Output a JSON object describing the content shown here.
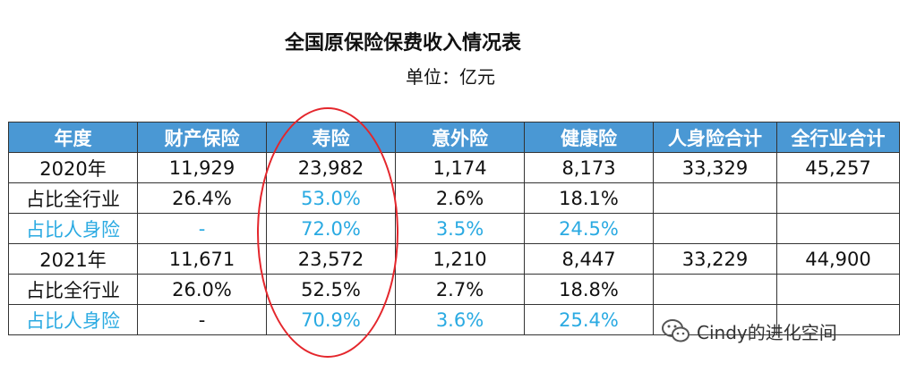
{
  "title": "全国原保险保费收入情况表",
  "unit": "单位：亿元",
  "table": {
    "headers": [
      "年度",
      "财产保险",
      "寿险",
      "意外险",
      "健康险",
      "人身险合计",
      "全行业合计"
    ],
    "rows": [
      {
        "cells": [
          "2020年",
          "11,929",
          "23,982",
          "1,174",
          "8,173",
          "33,329",
          "45,257"
        ],
        "blue": [
          false,
          false,
          false,
          false,
          false,
          false,
          false
        ]
      },
      {
        "cells": [
          "占比全行业",
          "26.4%",
          "53.0%",
          "2.6%",
          "18.1%",
          "",
          ""
        ],
        "blue": [
          false,
          false,
          true,
          false,
          false,
          false,
          false
        ]
      },
      {
        "cells": [
          "占比人身险",
          "-",
          "72.0%",
          "3.5%",
          "24.5%",
          "",
          ""
        ],
        "blue": [
          true,
          true,
          true,
          true,
          true,
          false,
          false
        ]
      },
      {
        "cells": [
          "2021年",
          "11,671",
          "23,572",
          "1,210",
          "8,447",
          "33,229",
          "44,900"
        ],
        "blue": [
          false,
          false,
          false,
          false,
          false,
          false,
          false
        ]
      },
      {
        "cells": [
          "占比全行业",
          "26.0%",
          "52.5%",
          "2.7%",
          "18.8%",
          "",
          ""
        ],
        "blue": [
          false,
          false,
          false,
          false,
          false,
          false,
          false
        ]
      },
      {
        "cells": [
          "占比人身险",
          "-",
          "70.9%",
          "3.6%",
          "25.4%",
          "",
          ""
        ],
        "blue": [
          true,
          false,
          true,
          true,
          true,
          false,
          false
        ]
      }
    ]
  },
  "watermark": {
    "text": "Cindy的进化空间",
    "icon": "wechat-icon"
  },
  "colors": {
    "header_bg": "#4a98d4",
    "highlight_text": "#2aaae2",
    "annotation_oval": "#e4262c"
  }
}
